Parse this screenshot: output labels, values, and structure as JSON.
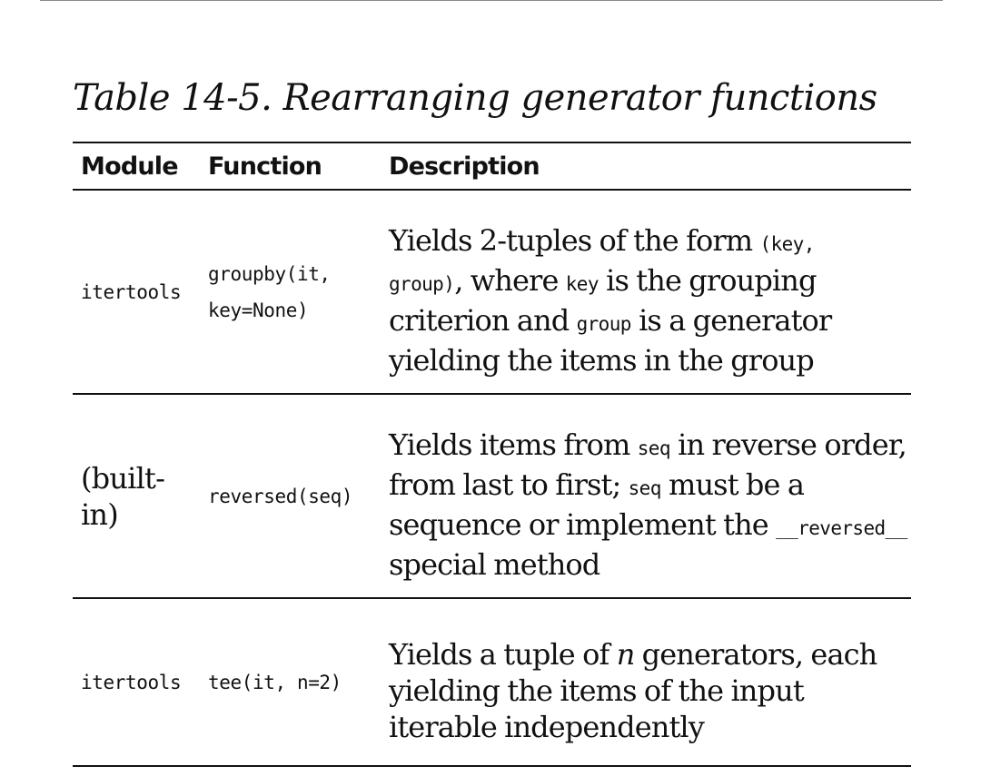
{
  "caption": "Table 14-5. Rearranging generator functions",
  "headers": {
    "module": "Module",
    "function": "Function",
    "description": "Description"
  },
  "rows": [
    {
      "module": "itertools",
      "function_line1": "groupby(it,",
      "function_line2": "key=None)",
      "description": {
        "t1": "Yields 2-tuples of the form ",
        "c1": "(key,",
        "c2": "group)",
        "t2": ", where ",
        "c3": "key",
        "t3": " is the grouping criterion and ",
        "c4": "group",
        "t4": " is a generator yielding the items in the group"
      }
    },
    {
      "module": "(built-in)",
      "function": "reversed(seq)",
      "description": {
        "t1": "Yields items from ",
        "c1": "seq",
        "t2": " in reverse order, from last to first; ",
        "c2": "seq",
        "t3": " must be a sequence or implement the ",
        "c3": "__reversed__",
        "t4": " special method"
      }
    },
    {
      "module": "itertools",
      "function": "tee(it, n=2)",
      "description": {
        "t1": "Yields a tuple of ",
        "i1": "n",
        "t2": " generators, each yielding the items of the input iterable independently"
      }
    }
  ]
}
